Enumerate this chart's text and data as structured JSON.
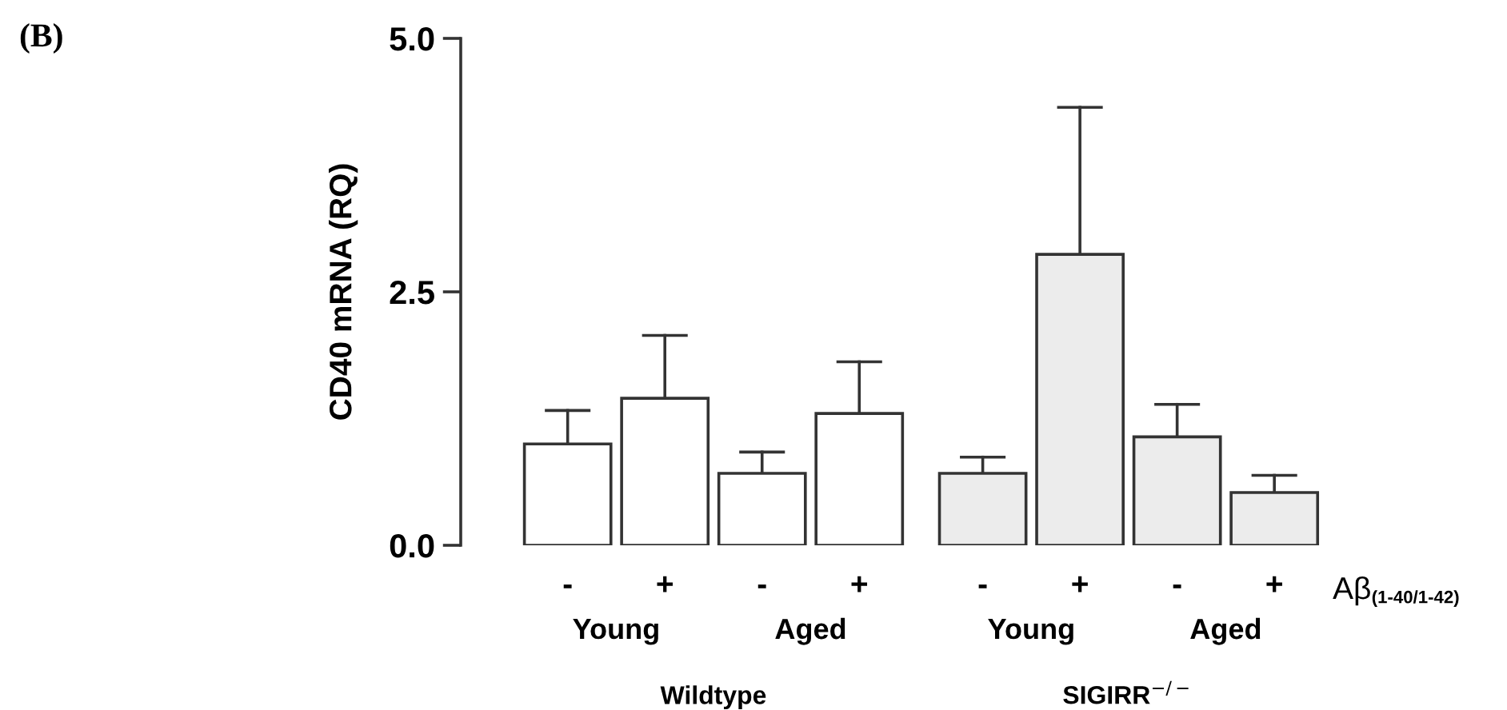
{
  "chart_data": {
    "type": "bar",
    "ylabel": "CD40 mRNA (RQ)",
    "categories": [
      "-",
      "+",
      "-",
      "+",
      "-",
      "+",
      "-",
      "+"
    ],
    "values": [
      1.0,
      1.45,
      0.71,
      1.3,
      0.71,
      2.87,
      1.07,
      0.52
    ],
    "colors": [
      "#ffffff",
      "#ffffff",
      "#ffffff",
      "#ffffff",
      "#ececec",
      "#ececec",
      "#ececec",
      "#ececec"
    ],
    "errors": [
      [
        1.0,
        1.33
      ],
      [
        1.45,
        2.07
      ],
      [
        0.71,
        0.92
      ],
      [
        1.3,
        1.81
      ],
      [
        0.71,
        0.87
      ],
      [
        2.87,
        4.32
      ],
      [
        1.07,
        1.39
      ],
      [
        0.52,
        0.69
      ]
    ],
    "ylim": [
      0,
      5
    ],
    "yticks": [
      {
        "value": 0,
        "label": "0.0"
      },
      {
        "value": 2.5,
        "label": "2.5"
      },
      {
        "value": 5,
        "label": "5.0"
      }
    ],
    "grid": false,
    "legend": false,
    "annotations": [
      "(B)",
      "Young",
      "Aged",
      "Young",
      "Aged",
      "Wildtype",
      "SIGIRR$^{−/−}$",
      "Aβ",
      "(1-40/1-42)"
    ]
  }
}
